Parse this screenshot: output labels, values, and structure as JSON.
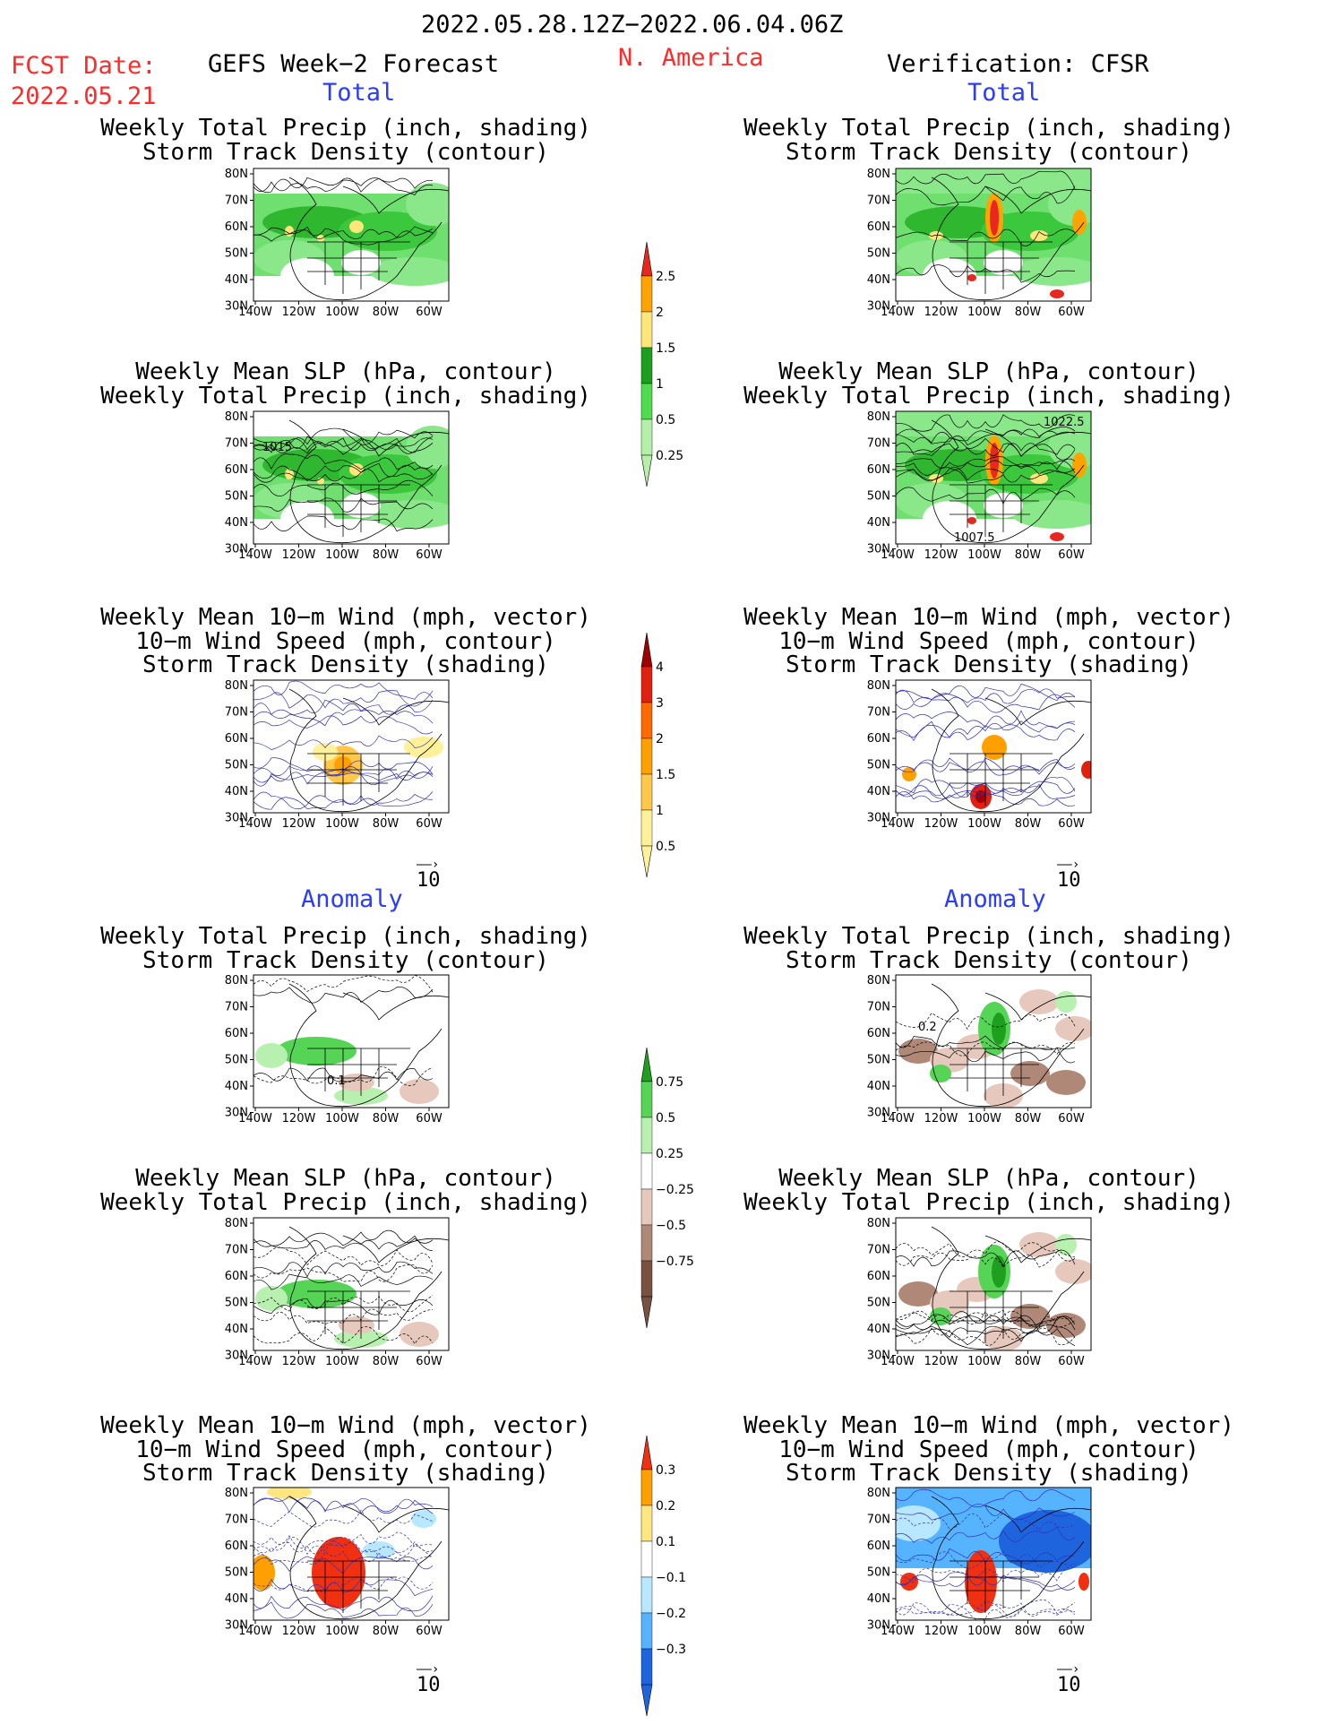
{
  "header": {
    "period": "2022.05.28.12Z−2022.06.04.06Z",
    "fcst_label": "FCST Date:",
    "fcst_date": "2022.05.21",
    "forecast_name": "GEFS Week−2 Forecast",
    "region": "N. America",
    "verification": "Verification: CFSR"
  },
  "sections": {
    "total": "Total",
    "anomaly": "Anomaly"
  },
  "axes": {
    "lat_ticks": [
      "80N",
      "70N",
      "60N",
      "50N",
      "40N",
      "30N"
    ],
    "lon_ticks": [
      "140W",
      "120W",
      "100W",
      "80W",
      "60W"
    ]
  },
  "titles": {
    "precip_track": [
      "Weekly Total Precip (inch, shading)",
      "Storm Track Density (contour)"
    ],
    "slp_precip": [
      "Weekly Mean SLP (hPa, contour)",
      "Weekly Total Precip (inch, shading)"
    ],
    "wind_track": [
      "Weekly Mean 10−m Wind (mph, vector)",
      "10−m Wind Speed (mph, contour)",
      "Storm Track Density (shading)"
    ]
  },
  "contour_labels": {
    "fcst_slp": "1015",
    "ver_slp_top": "1022.5",
    "ver_slp_bottom": "1007.5",
    "anom_a": "0.2",
    "anom_b": "0.1"
  },
  "vector_ref": "10",
  "colorbars": {
    "precip_total": {
      "labels": [
        "2.5",
        "2",
        "1.5",
        "1",
        "0.5",
        "0.25"
      ],
      "colors": [
        "#e8281e",
        "#ffa300",
        "#ffe67a",
        "#1e9e1e",
        "#4fdc4f",
        "#b4f0a8"
      ]
    },
    "track_total": {
      "labels": [
        "4",
        "3",
        "2",
        "1.5",
        "1",
        "0.5"
      ],
      "colors": [
        "#a00000",
        "#e02010",
        "#ff6a00",
        "#ffa000",
        "#ffc84a",
        "#fff09a"
      ]
    },
    "precip_anom": {
      "labels": [
        "0.75",
        "0.5",
        "0.25",
        "−0.25",
        "−0.5",
        "−0.75"
      ],
      "colors": [
        "#1ea01e",
        "#55d455",
        "#b8f0b0",
        "#ffffff",
        "#e6c8bc",
        "#b08878",
        "#7a5040"
      ]
    },
    "track_anom": {
      "labels": [
        "0.3",
        "0.2",
        "0.1",
        "−0.1",
        "−0.2",
        "−0.3"
      ],
      "colors": [
        "#f03010",
        "#ffa000",
        "#ffe680",
        "#ffffff",
        "#b8e8ff",
        "#56b4ff",
        "#1e64dc"
      ]
    }
  }
}
